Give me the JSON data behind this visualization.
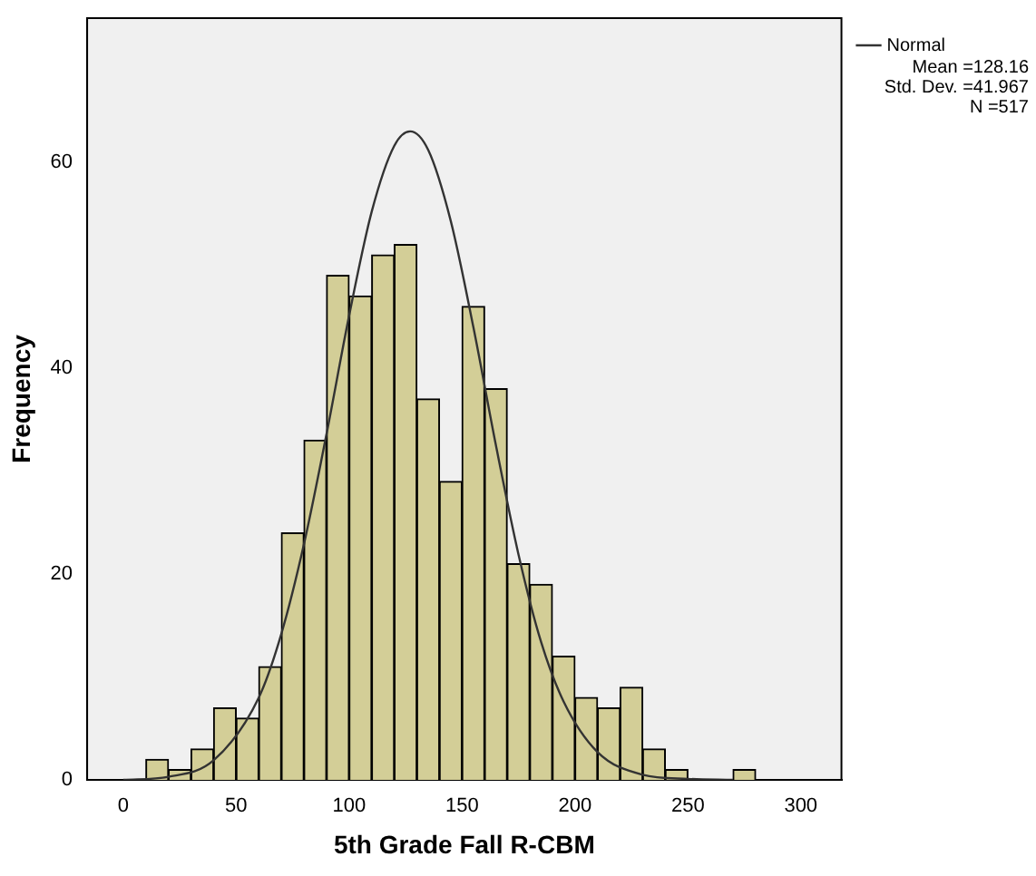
{
  "chart_data": {
    "type": "histogram",
    "xlabel": "5th Grade Fall R-CBM",
    "ylabel": "Frequency",
    "bins": [
      10,
      20,
      30,
      40,
      50,
      60,
      70,
      80,
      90,
      100,
      110,
      120,
      130,
      140,
      150,
      160,
      170,
      180,
      190,
      200,
      210,
      220,
      230,
      240,
      250,
      260,
      270,
      280
    ],
    "values": [
      2,
      1,
      3,
      7,
      6,
      11,
      24,
      33,
      49,
      47,
      51,
      52,
      37,
      29,
      46,
      38,
      21,
      19,
      12,
      8,
      7,
      9,
      3,
      1,
      0,
      0,
      1
    ],
    "color": "#d3ce97",
    "series": [
      {
        "name": "Normal",
        "type": "line",
        "color": "#333333",
        "x": [
          0,
          20,
          40,
          60,
          70,
          80,
          90,
          100,
          110,
          120,
          127,
          135,
          145,
          155,
          165,
          175,
          185,
          195,
          210,
          230,
          250,
          270
        ],
        "values": [
          0,
          0.3,
          1.9,
          8,
          14.2,
          22.9,
          33.6,
          45.1,
          55.2,
          61.6,
          63,
          61.2,
          54.3,
          44,
          32.5,
          21.9,
          13.4,
          7.6,
          2.7,
          0.5,
          0.1,
          0
        ]
      }
    ],
    "xlim": [
      -16,
      318
    ],
    "xticks": [
      0,
      50,
      100,
      150,
      200,
      250,
      300
    ],
    "ylim": [
      0,
      74
    ],
    "yticks": [
      0,
      20,
      40,
      60
    ],
    "grid": false,
    "legend": "top right",
    "marker": "none",
    "annotations": [
      "Mean =128.16",
      "Std. Dev. =41.967",
      "N =517"
    ]
  }
}
